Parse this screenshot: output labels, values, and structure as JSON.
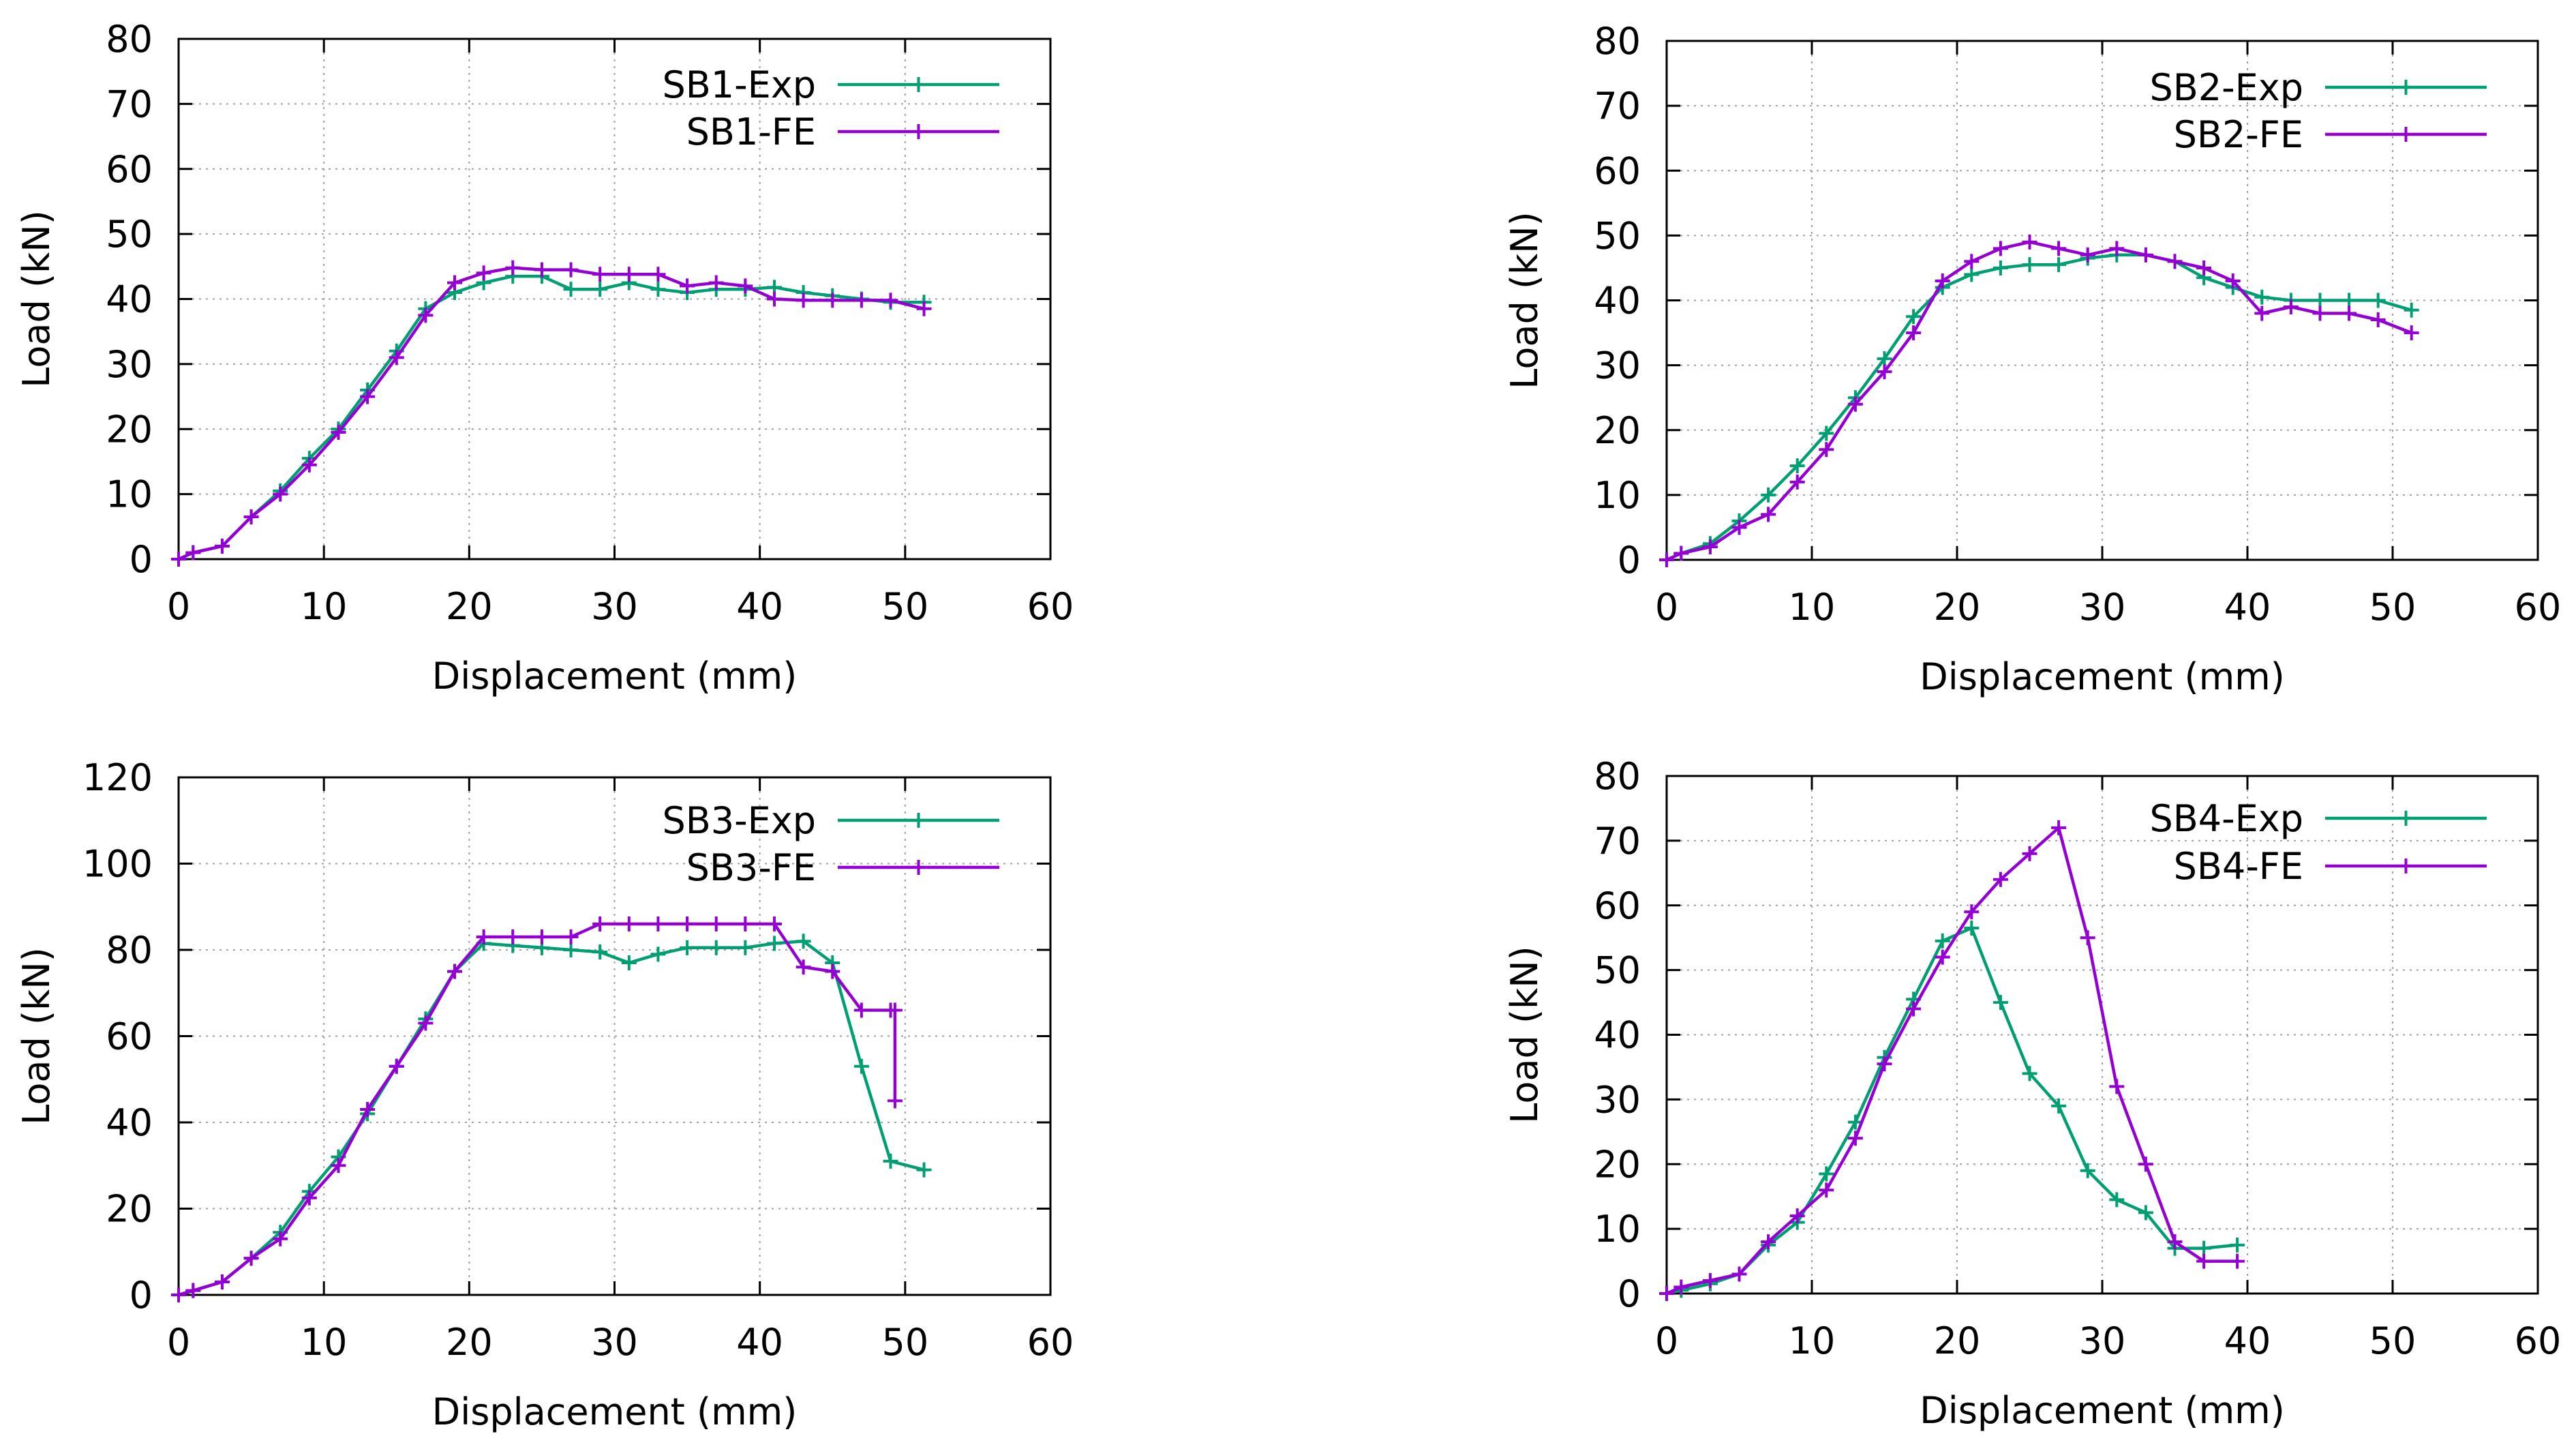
{
  "colors": {
    "exp": "#009e73",
    "fe": "#9400d3",
    "grid": "#a0a0a0",
    "axis": "#000000"
  },
  "chart_data": [
    {
      "type": "line",
      "panel": "SB1",
      "grid": true,
      "legend_position": "top-right",
      "xlabel": "Displacement (mm)",
      "ylabel": "Load (kN)",
      "xlim": [
        0,
        60
      ],
      "ylim": [
        0,
        80
      ],
      "xticks": [
        0,
        10,
        20,
        30,
        40,
        50,
        60
      ],
      "yticks": [
        0,
        10,
        20,
        30,
        40,
        50,
        60,
        70,
        80
      ],
      "series": [
        {
          "name": "SB1-Exp",
          "color": "#009e73",
          "x": [
            0,
            1,
            3,
            5,
            7,
            9,
            11,
            13,
            15,
            17,
            19,
            21,
            23,
            25,
            27,
            29,
            31,
            33,
            35,
            37,
            39,
            41,
            43,
            45,
            47,
            49,
            51.3
          ],
          "y": [
            0,
            1,
            2,
            6.5,
            10.5,
            15.5,
            20,
            26,
            32,
            38.5,
            41,
            42.5,
            43.5,
            43.5,
            41.5,
            41.5,
            42.5,
            41.5,
            41,
            41.5,
            41.5,
            41.8,
            41,
            40.5,
            40,
            39.5,
            39.5
          ]
        },
        {
          "name": "SB1-FE",
          "color": "#9400d3",
          "x": [
            0,
            1,
            3,
            5,
            7,
            9,
            11,
            13,
            15,
            17,
            19,
            21,
            23,
            25,
            27,
            29,
            31,
            33,
            35,
            37,
            39,
            41,
            43,
            45,
            47,
            49,
            51.3
          ],
          "y": [
            0,
            1,
            2,
            6.5,
            10,
            14.5,
            19.5,
            25,
            31,
            37.5,
            42.5,
            44,
            44.8,
            44.5,
            44.5,
            43.8,
            43.8,
            43.8,
            42,
            42.5,
            42,
            40,
            39.8,
            39.8,
            39.8,
            39.8,
            38.5
          ]
        }
      ]
    },
    {
      "type": "line",
      "panel": "SB2",
      "grid": true,
      "legend_position": "top-right",
      "xlabel": "Displacement (mm)",
      "ylabel": "Load (kN)",
      "xlim": [
        0,
        60
      ],
      "ylim": [
        0,
        80
      ],
      "xticks": [
        0,
        10,
        20,
        30,
        40,
        50,
        60
      ],
      "yticks": [
        0,
        10,
        20,
        30,
        40,
        50,
        60,
        70,
        80
      ],
      "series": [
        {
          "name": "SB2-Exp",
          "color": "#009e73",
          "x": [
            0,
            1,
            3,
            5,
            7,
            9,
            11,
            13,
            15,
            17,
            19,
            21,
            23,
            25,
            27,
            29,
            31,
            33,
            35,
            37,
            39,
            41,
            43,
            45,
            47,
            49,
            51.3
          ],
          "y": [
            0,
            1,
            2.5,
            6,
            10,
            14.5,
            19.5,
            25,
            31,
            37.5,
            42,
            44,
            45,
            45.5,
            45.5,
            46.5,
            47,
            47,
            46,
            43.5,
            42,
            40.5,
            40,
            40,
            40,
            40,
            38.5
          ]
        },
        {
          "name": "SB2-FE",
          "color": "#9400d3",
          "x": [
            0,
            1,
            3,
            5,
            7,
            9,
            11,
            13,
            15,
            17,
            19,
            21,
            23,
            25,
            27,
            29,
            31,
            33,
            35,
            37,
            39,
            41,
            43,
            45,
            47,
            49,
            51.3
          ],
          "y": [
            0,
            1,
            2,
            5,
            7,
            12,
            17,
            24,
            29,
            35,
            43,
            46,
            48,
            49,
            48,
            47,
            48,
            47,
            46,
            45,
            43,
            38,
            39,
            38,
            38,
            37,
            35
          ]
        }
      ]
    },
    {
      "type": "line",
      "panel": "SB3",
      "grid": true,
      "legend_position": "top-right",
      "xlabel": "Displacement (mm)",
      "ylabel": "Load (kN)",
      "xlim": [
        0,
        60
      ],
      "ylim": [
        0,
        120
      ],
      "xticks": [
        0,
        10,
        20,
        30,
        40,
        50,
        60
      ],
      "yticks": [
        0,
        20,
        40,
        60,
        80,
        100,
        120
      ],
      "series": [
        {
          "name": "SB3-Exp",
          "color": "#009e73",
          "x": [
            0,
            1,
            3,
            5,
            7,
            9,
            11,
            13,
            15,
            17,
            19,
            21,
            23,
            25,
            27,
            29,
            31,
            33,
            35,
            37,
            39,
            41,
            43,
            45,
            47,
            49,
            51.3
          ],
          "y": [
            0,
            1,
            3,
            8.5,
            14.5,
            24,
            32,
            42,
            53,
            64,
            75,
            81.5,
            81,
            80.5,
            80,
            79.5,
            77,
            79,
            80.5,
            80.5,
            80.5,
            81.5,
            82,
            77,
            53,
            31,
            29
          ]
        },
        {
          "name": "SB3-FE",
          "color": "#9400d3",
          "x": [
            0,
            1,
            3,
            5,
            7,
            9,
            11,
            13,
            15,
            17,
            19,
            21,
            23,
            25,
            27,
            29,
            31,
            33,
            35,
            37,
            39,
            41,
            43,
            45,
            47,
            49,
            49.3,
            49.3
          ],
          "y": [
            0,
            1,
            3,
            8.5,
            13,
            22.5,
            30,
            43,
            53,
            63,
            75,
            83,
            83,
            83,
            83,
            86,
            86,
            86,
            86,
            86,
            86,
            86,
            76,
            75,
            66,
            66,
            66,
            45
          ]
        }
      ]
    },
    {
      "type": "line",
      "panel": "SB4",
      "grid": true,
      "legend_position": "top-right",
      "xlabel": "Displacement (mm)",
      "ylabel": "Load (kN)",
      "xlim": [
        0,
        60
      ],
      "ylim": [
        0,
        80
      ],
      "xticks": [
        0,
        10,
        20,
        30,
        40,
        50,
        60
      ],
      "yticks": [
        0,
        10,
        20,
        30,
        40,
        50,
        60,
        70,
        80
      ],
      "series": [
        {
          "name": "SB4-Exp",
          "color": "#009e73",
          "x": [
            0,
            1,
            3,
            5,
            7,
            9,
            11,
            13,
            15,
            17,
            19,
            21,
            23,
            25,
            27,
            29,
            31,
            33,
            35,
            37,
            39.3
          ],
          "y": [
            0,
            0.5,
            1.5,
            3,
            7.5,
            11,
            18.5,
            26.5,
            36.5,
            45.5,
            54.5,
            56.5,
            45,
            34,
            29,
            19,
            14.5,
            12.5,
            7,
            7,
            7.5
          ]
        },
        {
          "name": "SB4-FE",
          "color": "#9400d3",
          "x": [
            0,
            1,
            3,
            5,
            7,
            9,
            11,
            13,
            15,
            17,
            19,
            21,
            23,
            25,
            27,
            29,
            31,
            33,
            35,
            37,
            39.3
          ],
          "y": [
            0,
            1,
            2,
            3,
            8,
            12,
            16,
            24,
            35.5,
            44,
            52,
            59,
            64,
            68,
            72,
            55,
            32,
            20,
            8,
            5,
            5
          ]
        }
      ]
    }
  ]
}
